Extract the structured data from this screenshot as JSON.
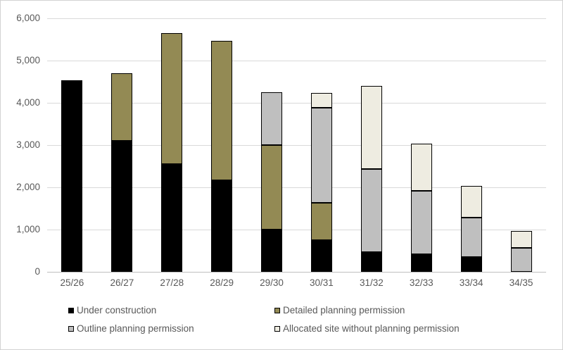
{
  "chart_data": {
    "type": "bar",
    "subtype": "stacked-vertical",
    "title": "",
    "xlabel": "",
    "ylabel": "",
    "ylim": [
      0,
      6000
    ],
    "y_tick_step": 1000,
    "y_tick_labels": [
      "0",
      "1,000",
      "2,000",
      "3,000",
      "4,000",
      "5,000",
      "6,000"
    ],
    "grid": "horizontal",
    "legend_position": "bottom-two-columns",
    "categories": [
      "25/26",
      "26/27",
      "27/28",
      "28/29",
      "29/30",
      "30/31",
      "31/32",
      "32/33",
      "33/34",
      "34/35"
    ],
    "series": [
      {
        "name": "Under construction",
        "color": "#000000",
        "border": false,
        "values": [
          4530,
          3100,
          2550,
          2160,
          1000,
          750,
          470,
          410,
          350,
          0
        ]
      },
      {
        "name": "Detailed planning permission",
        "color": "#938A54",
        "border": true,
        "values": [
          0,
          1600,
          3100,
          3300,
          2000,
          880,
          0,
          0,
          0,
          0
        ]
      },
      {
        "name": "Outline planning permission",
        "color": "#BFBFBF",
        "border": true,
        "values": [
          0,
          0,
          0,
          0,
          1250,
          2260,
          1960,
          1510,
          940,
          560
        ]
      },
      {
        "name": "Allocated site without planning permission",
        "color": "#EEECE1",
        "border": true,
        "values": [
          0,
          0,
          0,
          0,
          0,
          340,
          1970,
          1120,
          750,
          400
        ]
      }
    ],
    "colors": {
      "axis_text": "#595959",
      "gridline": "#d9d9d9",
      "axis_line": "#bfbfbf",
      "background": "#ffffff"
    }
  }
}
